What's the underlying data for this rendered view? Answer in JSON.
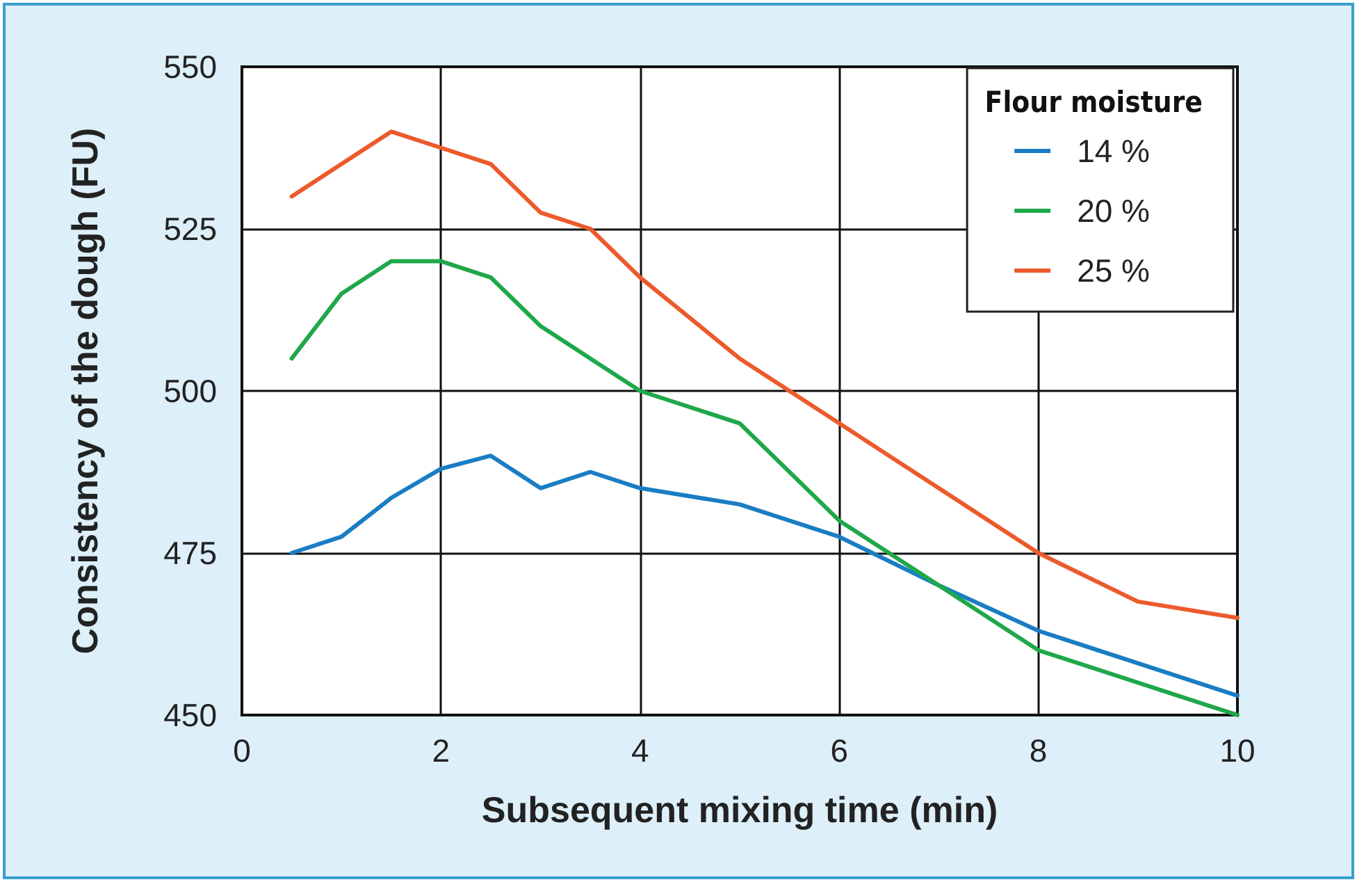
{
  "chart_data": {
    "type": "line",
    "xlabel": "Subsequent mixing time (min)",
    "ylabel": "Consistency of the dough (FU)",
    "legend_title": "Flour moisture",
    "xlim": [
      0,
      10
    ],
    "xticks": [
      0,
      2,
      4,
      6,
      8,
      10
    ],
    "ylim": [
      450,
      550
    ],
    "yticks": [
      450,
      475,
      500,
      525,
      550
    ],
    "grid": true,
    "legend": "top right",
    "marker": "none",
    "line_style": "solid",
    "series": [
      {
        "name": "14 %",
        "color": "#1a7dc4",
        "x": [
          0.5,
          1,
          1.5,
          2,
          2.5,
          3,
          3.5,
          4,
          5,
          6,
          7,
          8,
          10
        ],
        "values": [
          475,
          477.5,
          483.5,
          488,
          490,
          485,
          487.5,
          485,
          482.5,
          477.5,
          470,
          463,
          453
        ]
      },
      {
        "name": "20 %",
        "color": "#1fa84a",
        "x": [
          0.5,
          1,
          1.5,
          2,
          2.5,
          3,
          3.5,
          4,
          5,
          6,
          7,
          8,
          10
        ],
        "values": [
          505,
          515,
          520,
          520,
          517.5,
          510,
          505,
          500,
          495,
          480,
          470,
          460,
          450
        ]
      },
      {
        "name": "25 %",
        "color": "#ec5a2c",
        "x": [
          0.5,
          1,
          1.5,
          2,
          2.5,
          3,
          3.5,
          4,
          5,
          6,
          7,
          8,
          9,
          10
        ],
        "values": [
          530,
          535,
          540,
          537.5,
          535,
          527.5,
          525,
          517.5,
          505,
          495,
          485,
          475,
          467.5,
          465
        ]
      }
    ]
  }
}
